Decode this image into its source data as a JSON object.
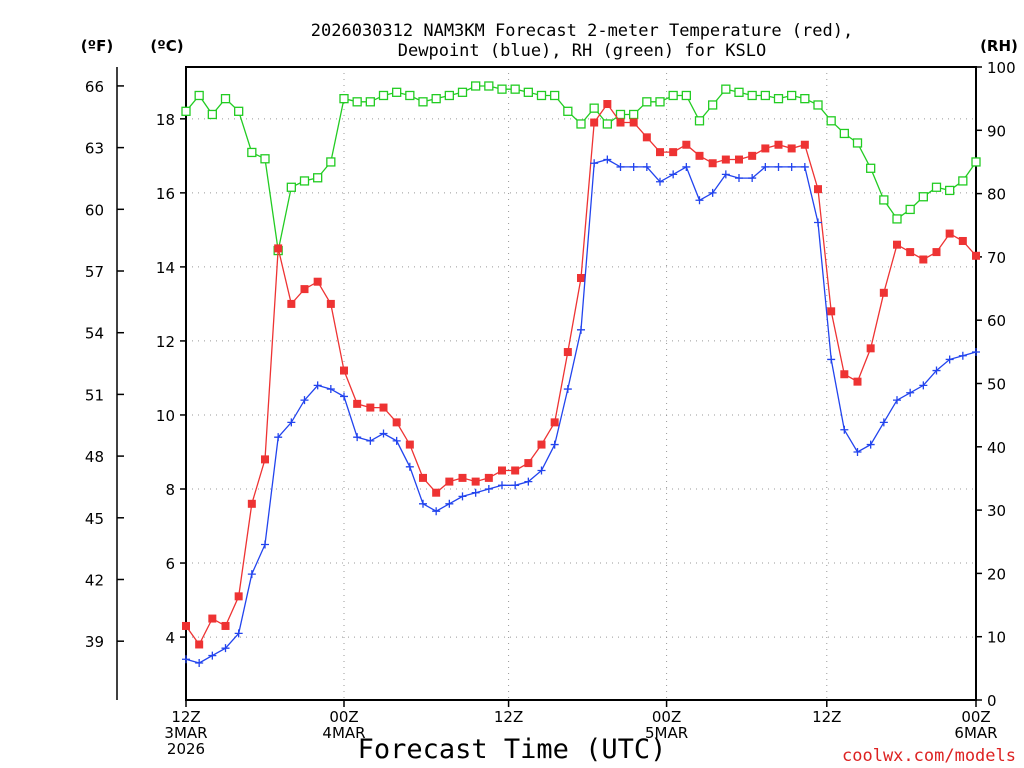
{
  "chart_data": {
    "type": "line",
    "title_line1": "2026030312 NAM3KM Forecast 2-meter Temperature (red),",
    "title_line2": "Dewpoint (blue), RH (green) for KSLO",
    "xlabel": "Forecast Time (UTC)",
    "credit": "coolwx.com/models",
    "units": {
      "fahrenheit": "(ºF)",
      "celsius": "(ºC)",
      "rh": "(RH)"
    },
    "x_range_hours": [
      0,
      36
    ],
    "y_celsius_range": [
      2.3,
      19.4
    ],
    "y_rh_range": [
      0,
      100
    ],
    "celsius_ticks": [
      "4",
      "6",
      "8",
      "10",
      "12",
      "14",
      "16",
      "18"
    ],
    "fahrenheit_ticks": [
      "39",
      "42",
      "45",
      "48",
      "51",
      "54",
      "57",
      "60",
      "63",
      "66"
    ],
    "rh_ticks": [
      "0",
      "10",
      "20",
      "30",
      "40",
      "50",
      "60",
      "70",
      "80",
      "90",
      "100"
    ],
    "x_ticks": [
      {
        "hour": 0,
        "lines": [
          "12Z",
          "3MAR",
          "2026"
        ]
      },
      {
        "hour": 7.2,
        "lines": [
          "00Z",
          "4MAR"
        ]
      },
      {
        "hour": 14.7,
        "lines": [
          "12Z"
        ]
      },
      {
        "hour": 21.9,
        "lines": [
          "00Z",
          "5MAR"
        ]
      },
      {
        "hour": 29.2,
        "lines": [
          "12Z"
        ]
      },
      {
        "hour": 36,
        "lines": [
          "00Z",
          "6MAR"
        ]
      }
    ],
    "grid": true,
    "series": [
      {
        "name": "Temperature",
        "color": "#ee3333",
        "marker": "filled-square",
        "units": "C",
        "x": [
          0,
          0.6,
          1.2,
          1.8,
          2.4,
          3.0,
          3.6,
          4.2,
          4.8,
          5.4,
          6.0,
          6.6,
          7.2,
          7.8,
          8.4,
          9.0,
          9.6,
          10.2,
          10.8,
          11.4,
          12.0,
          12.6,
          13.2,
          13.8,
          14.4,
          15.0,
          15.6,
          16.2,
          16.8,
          17.4,
          18.0,
          18.6,
          19.2,
          19.8,
          20.4,
          21.0,
          21.6,
          22.2,
          22.8,
          23.4,
          24.0,
          24.6,
          25.2,
          25.8,
          26.4,
          27.0,
          27.6,
          28.2,
          28.8,
          29.4,
          30.0,
          30.6,
          31.2,
          31.8,
          32.4,
          33.0,
          33.6,
          34.2,
          34.8,
          35.4,
          36.0
        ],
        "values": [
          4.3,
          3.8,
          4.5,
          4.3,
          5.1,
          7.6,
          8.8,
          14.5,
          13.0,
          13.4,
          13.6,
          13.0,
          11.2,
          10.3,
          10.2,
          10.2,
          9.8,
          9.2,
          8.3,
          7.9,
          8.2,
          8.3,
          8.2,
          8.3,
          8.5,
          8.5,
          8.7,
          9.2,
          9.8,
          11.7,
          13.7,
          17.9,
          18.4,
          17.9,
          17.9,
          17.5,
          17.1,
          17.1,
          17.3,
          17.0,
          16.8,
          16.9,
          16.9,
          17.0,
          17.2,
          17.3,
          17.2,
          17.3,
          16.1,
          12.8,
          11.1,
          10.9,
          11.8,
          13.3,
          14.6,
          14.4,
          14.2,
          14.4,
          14.9,
          14.7,
          14.3
        ]
      },
      {
        "name": "Dewpoint",
        "color": "#2244ee",
        "marker": "plus",
        "units": "C",
        "x": [
          0,
          0.6,
          1.2,
          1.8,
          2.4,
          3.0,
          3.6,
          4.2,
          4.8,
          5.4,
          6.0,
          6.6,
          7.2,
          7.8,
          8.4,
          9.0,
          9.6,
          10.2,
          10.8,
          11.4,
          12.0,
          12.6,
          13.2,
          13.8,
          14.4,
          15.0,
          15.6,
          16.2,
          16.8,
          17.4,
          18.0,
          18.6,
          19.2,
          19.8,
          20.4,
          21.0,
          21.6,
          22.2,
          22.8,
          23.4,
          24.0,
          24.6,
          25.2,
          25.8,
          26.4,
          27.0,
          27.6,
          28.2,
          28.8,
          29.4,
          30.0,
          30.6,
          31.2,
          31.8,
          32.4,
          33.0,
          33.6,
          34.2,
          34.8,
          35.4,
          36.0
        ],
        "values": [
          3.4,
          3.3,
          3.5,
          3.7,
          4.1,
          5.7,
          6.5,
          9.4,
          9.8,
          10.4,
          10.8,
          10.7,
          10.5,
          9.4,
          9.3,
          9.5,
          9.3,
          8.6,
          7.6,
          7.4,
          7.6,
          7.8,
          7.9,
          8.0,
          8.1,
          8.1,
          8.2,
          8.5,
          9.2,
          10.7,
          12.3,
          16.8,
          16.9,
          16.7,
          16.7,
          16.7,
          16.3,
          16.5,
          16.7,
          15.8,
          16.0,
          16.5,
          16.4,
          16.4,
          16.7,
          16.7,
          16.7,
          16.7,
          15.2,
          11.5,
          9.6,
          9.0,
          9.2,
          9.8,
          10.4,
          10.6,
          10.8,
          11.2,
          11.5,
          11.6,
          11.7
        ]
      },
      {
        "name": "Relative Humidity",
        "color": "#22cc22",
        "marker": "open-square",
        "units": "%",
        "x": [
          0,
          0.6,
          1.2,
          1.8,
          2.4,
          3.0,
          3.6,
          4.2,
          4.8,
          5.4,
          6.0,
          6.6,
          7.2,
          7.8,
          8.4,
          9.0,
          9.6,
          10.2,
          10.8,
          11.4,
          12.0,
          12.6,
          13.2,
          13.8,
          14.4,
          15.0,
          15.6,
          16.2,
          16.8,
          17.4,
          18.0,
          18.6,
          19.2,
          19.8,
          20.4,
          21.0,
          21.6,
          22.2,
          22.8,
          23.4,
          24.0,
          24.6,
          25.2,
          25.8,
          26.4,
          27.0,
          27.6,
          28.2,
          28.8,
          29.4,
          30.0,
          30.6,
          31.2,
          31.8,
          32.4,
          33.0,
          33.6,
          34.2,
          34.8,
          35.4,
          36.0
        ],
        "values": [
          93,
          95.5,
          92.5,
          95,
          93,
          86.5,
          85.5,
          71,
          81,
          82,
          82.5,
          85,
          95,
          94.5,
          94.5,
          95.5,
          96,
          95.5,
          94.5,
          95,
          95.5,
          96,
          97,
          97,
          96.5,
          96.5,
          96,
          95.5,
          95.5,
          93,
          91,
          93.5,
          91,
          92.5,
          92.5,
          94.5,
          94.5,
          95.5,
          95.5,
          91.5,
          94,
          96.5,
          96,
          95.5,
          95.5,
          95,
          95.5,
          95,
          94,
          91.5,
          89.5,
          88,
          84,
          79,
          76,
          77.5,
          79.5,
          81,
          80.5,
          82,
          85
        ]
      }
    ]
  }
}
